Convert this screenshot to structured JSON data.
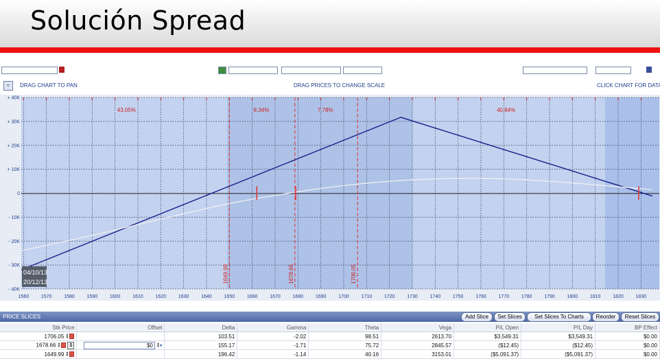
{
  "slide": {
    "title": "Solución Spread"
  },
  "controls": {
    "drag_pan": "DRAG CHART TO PAN",
    "drag_prices": "DRAG PRICES TO CHANGE SCALE",
    "click_data": "CLICK CHART FOR DATA"
  },
  "colors": {
    "risk_line": "#1a1f8a",
    "today_line": "#f2f2f2",
    "price_marker": "#e03030",
    "brand_bar": "#ee1111"
  },
  "chart_data": {
    "type": "line",
    "title": "",
    "xlabel": "",
    "ylabel": "",
    "xlim": [
      1559,
      1838
    ],
    "ylim": [
      -40000,
      40000
    ],
    "x_ticks": [
      1560,
      1570,
      1580,
      1590,
      1600,
      1610,
      1620,
      1630,
      1640,
      1650,
      1660,
      1670,
      1680,
      1690,
      1700,
      1710,
      1720,
      1730,
      1740,
      1750,
      1760,
      1770,
      1780,
      1790,
      1800,
      1810,
      1820,
      1830
    ],
    "y_ticks": [
      {
        "value": 40000,
        "label": "+ 40K"
      },
      {
        "value": 30000,
        "label": "+ 30K"
      },
      {
        "value": 20000,
        "label": "+ 20K"
      },
      {
        "value": 10000,
        "label": "+ 10K"
      },
      {
        "value": 0,
        "label": "0"
      },
      {
        "value": -10000,
        "label": "- 10K"
      },
      {
        "value": -20000,
        "label": "- 20K"
      },
      {
        "value": -30000,
        "label": "- 30K"
      },
      {
        "value": -40000,
        "label": "- 40K"
      }
    ],
    "grid": true,
    "series": [
      {
        "key": "expiration",
        "color": "#1a1f8a",
        "x": [
          1559,
          1725,
          1835
        ],
        "y": [
          -32000,
          31700,
          -1200
        ]
      },
      {
        "key": "today",
        "color": "#f2f2f2",
        "x": [
          1559,
          1570,
          1580,
          1590,
          1600,
          1610,
          1620,
          1630,
          1640,
          1650,
          1660,
          1670,
          1680,
          1690,
          1700,
          1710,
          1720,
          1730,
          1740,
          1750,
          1760,
          1770,
          1780,
          1790,
          1800,
          1810,
          1820,
          1830,
          1835
        ],
        "y": [
          -24000,
          -21800,
          -19700,
          -17600,
          -15400,
          -13100,
          -10800,
          -8600,
          -6400,
          -4300,
          -2500,
          -900,
          600,
          2000,
          3200,
          4200,
          5000,
          5600,
          6000,
          6200,
          6200,
          6000,
          5600,
          5000,
          4300,
          3500,
          2700,
          1900,
          1500
        ]
      }
    ],
    "price_lines": [
      {
        "x": 1649.99,
        "label": "1649.99"
      },
      {
        "x": 1678.66,
        "label": "1678.66"
      },
      {
        "x": 1706.05,
        "label": "1706.05"
      }
    ],
    "range_percents": [
      {
        "x": 1605,
        "label": "43.05%"
      },
      {
        "x": 1664,
        "label": "8.34%"
      },
      {
        "x": 1692,
        "label": "7.78%"
      },
      {
        "x": 1771,
        "label": "40.84%"
      }
    ],
    "short_markers": [
      1662,
      1679,
      1829
    ],
    "date_labels": [
      "04/10/13",
      "20/12/13"
    ]
  },
  "price_slices": {
    "title": "PRICE SLICES",
    "buttons": [
      "Add Slice",
      "Set Slices",
      "Set Slices To Charts",
      "Reorder",
      "Reset Slices"
    ],
    "columns": [
      "Stk Price",
      "Offset",
      "Delta",
      "Gamma",
      "Theta",
      "Vega",
      "P/L Open",
      "P/L Day",
      "BP Effect"
    ],
    "rows": [
      {
        "price": "1706.05",
        "offset": "",
        "delta": "103.51",
        "gamma": "-2.02",
        "theta": "98.51",
        "vega": "2613.70",
        "pl_open": "$3,549.31",
        "pl_day": "$3,549.31",
        "bp": "$0.00"
      },
      {
        "price": "1678.66",
        "offset": "$0",
        "delta": "155.17",
        "gamma": "-1.71",
        "theta": "75.72",
        "vega": "2845.57",
        "pl_open": "($12.45)",
        "pl_day": "($12.45)",
        "bp": "$0.00"
      },
      {
        "price": "1649.99",
        "offset": "",
        "delta": "196.42",
        "gamma": "-1.14",
        "theta": "40.16",
        "vega": "3153.01",
        "pl_open": "($5,091.37)",
        "pl_day": "($5,091.37)",
        "bp": "$0.00"
      }
    ]
  }
}
